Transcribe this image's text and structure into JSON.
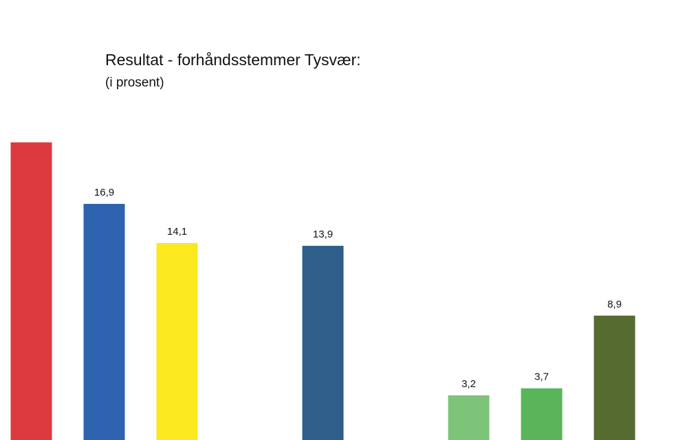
{
  "chart_data": {
    "type": "bar",
    "title": "Resultat - forhåndsstemmer Tysvær:",
    "subtitle": "(i prosent)",
    "ylim": [
      0,
      21.3
    ],
    "grid": false,
    "legend": "none",
    "series": [
      {
        "values": [
          21.3,
          16.9,
          14.1,
          0.0,
          13.9,
          0.0,
          3.2,
          3.7,
          8.9
        ],
        "labels": [
          "",
          "16,9",
          "14,1",
          "",
          "13,9",
          "",
          "3,2",
          "3,7",
          "8,9"
        ],
        "colors": [
          "#dc3a3e",
          "#2e63b0",
          "#fbe81f",
          "#ffffff",
          "#2e5f8a",
          "#ffffff",
          "#7dc47a",
          "#5ab55a",
          "#556b2f"
        ]
      }
    ]
  }
}
